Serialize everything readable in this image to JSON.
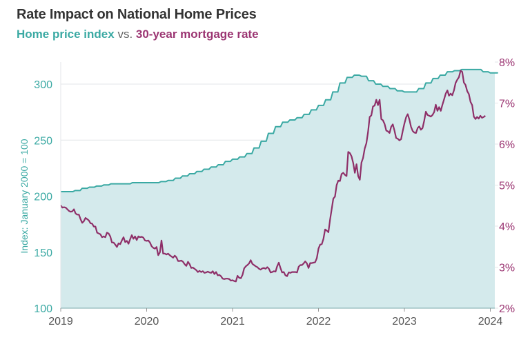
{
  "header": {
    "title": "Rate Impact on National Home Prices",
    "subtitle_part1": "Home price index",
    "subtitle_vs": " vs. ",
    "subtitle_part2": "30-year mortgage rate"
  },
  "colors": {
    "hpi": "#3aa9a3",
    "hpi_fill": "#d4eaec",
    "rate": "#8e2f68",
    "rate_label": "#9b3572",
    "grid": "#e3e6e8",
    "axis_text": "#555555"
  },
  "chart_data": {
    "type": "line",
    "title": "Rate Impact on National Home Prices",
    "subtitle": "Home price index vs. 30-year mortgage rate",
    "xlabel": "",
    "ylabel": "Index: January 2000 = 100",
    "y2label": "",
    "x_ticks": [
      "2019",
      "2020",
      "2021",
      "2022",
      "2023",
      "2024"
    ],
    "x_range": [
      2019.0,
      2024.06
    ],
    "y_ticks": [
      "100",
      "150",
      "200",
      "250",
      "300"
    ],
    "ylim": [
      100,
      320
    ],
    "y2_ticks": [
      "2%",
      "3%",
      "4%",
      "5%",
      "6%",
      "7%",
      "8%"
    ],
    "y2lim": [
      2,
      8
    ],
    "grid": true,
    "legend": "subtitle",
    "series": [
      {
        "name": "Home price index",
        "axis": "left",
        "style": "area",
        "x_start": 2019.0,
        "x_step_months": 1,
        "values": [
          204,
          204,
          205,
          207,
          208,
          209,
          210,
          211,
          211,
          211,
          212,
          212,
          212,
          212,
          213,
          214,
          216,
          218,
          220,
          222,
          224,
          226,
          228,
          231,
          233,
          235,
          238,
          243,
          249,
          256,
          262,
          266,
          268,
          270,
          273,
          277,
          281,
          286,
          293,
          301,
          306,
          308,
          307,
          303,
          300,
          298,
          296,
          294,
          293,
          293,
          296,
          301,
          305,
          308,
          311,
          312,
          313,
          313,
          313,
          311,
          310,
          310
        ]
      },
      {
        "name": "30-year mortgage rate",
        "axis": "right",
        "style": "line",
        "x_start": 2019.0,
        "x_step_weeks": 1,
        "values": [
          4.51,
          4.45,
          4.46,
          4.45,
          4.41,
          4.37,
          4.35,
          4.36,
          4.41,
          4.31,
          4.28,
          4.28,
          4.17,
          4.08,
          4.12,
          4.2,
          4.17,
          4.14,
          4.07,
          4.06,
          3.99,
          3.99,
          3.84,
          3.82,
          3.8,
          3.73,
          3.75,
          3.73,
          3.84,
          3.82,
          3.75,
          3.6,
          3.6,
          3.55,
          3.49,
          3.58,
          3.56,
          3.65,
          3.73,
          3.61,
          3.64,
          3.57,
          3.68,
          3.78,
          3.69,
          3.75,
          3.66,
          3.75,
          3.73,
          3.74,
          3.72,
          3.65,
          3.64,
          3.65,
          3.6,
          3.51,
          3.47,
          3.45,
          3.49,
          3.29,
          3.36,
          3.65,
          3.33,
          3.33,
          3.31,
          3.33,
          3.29,
          3.26,
          3.23,
          3.28,
          3.24,
          3.15,
          3.15,
          3.16,
          3.13,
          3.07,
          3.03,
          3.13,
          3.07,
          2.98,
          2.99,
          2.96,
          2.93,
          2.88,
          2.91,
          2.88,
          2.9,
          2.86,
          2.87,
          2.89,
          2.87,
          2.86,
          2.9,
          2.83,
          2.88,
          2.8,
          2.81,
          2.78,
          2.72,
          2.71,
          2.72,
          2.72,
          2.71,
          2.67,
          2.68,
          2.66,
          2.65,
          2.79,
          2.74,
          2.73,
          2.81,
          2.97,
          3.02,
          3.05,
          3.09,
          3.17,
          3.08,
          3.05,
          3.02,
          3.0,
          2.96,
          2.94,
          2.97,
          2.98,
          2.96,
          3.0,
          2.96,
          2.87,
          2.88,
          2.9,
          2.89,
          3.02,
          3.11,
          2.98,
          2.87,
          2.88,
          2.8,
          2.78,
          2.87,
          2.86,
          2.88,
          2.88,
          2.88,
          2.87,
          3.01,
          3.05,
          3.05,
          3.09,
          3.14,
          3.09,
          2.98,
          3.1,
          3.1,
          3.11,
          3.12,
          3.22,
          3.45,
          3.55,
          3.56,
          3.69,
          3.92,
          3.89,
          3.85,
          4.16,
          4.42,
          4.67,
          4.72,
          5.0,
          5.11,
          5.1,
          5.27,
          5.3,
          5.25,
          5.22,
          5.81,
          5.78,
          5.7,
          5.54,
          5.3,
          5.51,
          5.22,
          5.13,
          5.55,
          5.66,
          5.89,
          6.02,
          6.29,
          6.66,
          6.7,
          6.92,
          6.94,
          7.08,
          6.95,
          7.08,
          6.61,
          6.58,
          6.49,
          6.33,
          6.31,
          6.27,
          6.42,
          6.48,
          6.33,
          6.15,
          6.13,
          6.09,
          6.12,
          6.32,
          6.5,
          6.65,
          6.73,
          6.6,
          6.42,
          6.32,
          6.28,
          6.27,
          6.39,
          6.43,
          6.35,
          6.39,
          6.57,
          6.79,
          6.71,
          6.69,
          6.67,
          6.71,
          6.78,
          6.96,
          6.81,
          6.9,
          6.81,
          6.96,
          7.09,
          7.23,
          7.31,
          7.18,
          7.23,
          7.19,
          7.31,
          7.49,
          7.57,
          7.63,
          7.79,
          7.76,
          7.5,
          7.44,
          7.29,
          7.22,
          7.03,
          6.95,
          6.67,
          6.61,
          6.66,
          6.62,
          6.69,
          6.64,
          6.66,
          6.69
        ]
      }
    ]
  }
}
